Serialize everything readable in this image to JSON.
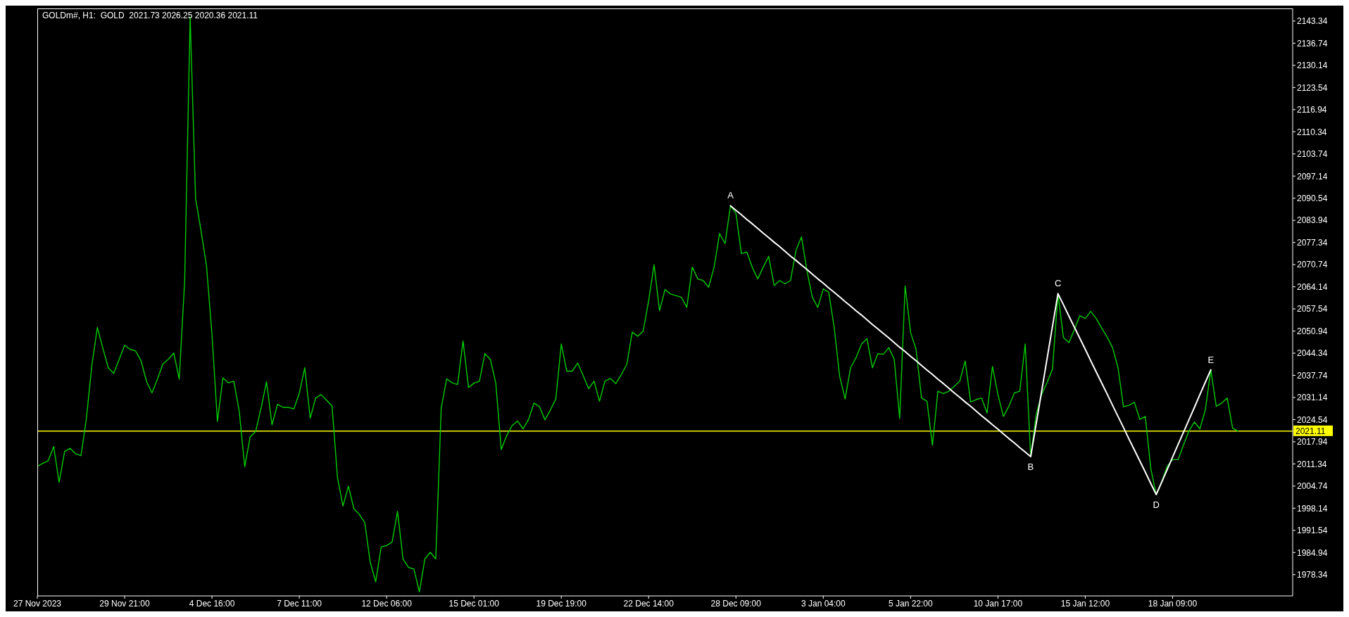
{
  "chart_data": {
    "type": "line",
    "title": "GOLDm#, H1:  GOLD  2021.73 2026.25 2020.36 2021.11",
    "categories": [
      "27 Nov 2023",
      null,
      null,
      null,
      null,
      null,
      null,
      null,
      null,
      null,
      null,
      null,
      null,
      null,
      null,
      null,
      "29 Nov 21:00",
      null,
      null,
      null,
      null,
      null,
      null,
      null,
      null,
      null,
      null,
      null,
      null,
      null,
      null,
      null,
      "4 Dec 16:00",
      null,
      null,
      null,
      null,
      null,
      null,
      null,
      null,
      null,
      null,
      null,
      null,
      null,
      null,
      null,
      "7 Dec 11:00",
      null,
      null,
      null,
      null,
      null,
      null,
      null,
      null,
      null,
      null,
      null,
      null,
      null,
      null,
      null,
      "12 Dec 06:00",
      null,
      null,
      null,
      null,
      null,
      null,
      null,
      null,
      null,
      null,
      null,
      null,
      null,
      null,
      null,
      "15 Dec 01:00",
      null,
      null,
      null,
      null,
      null,
      null,
      null,
      null,
      null,
      null,
      null,
      null,
      null,
      null,
      null,
      "19 Dec 19:00",
      null,
      null,
      null,
      null,
      null,
      null,
      null,
      null,
      null,
      null,
      null,
      null,
      null,
      null,
      null,
      "22 Dec 14:00",
      null,
      null,
      null,
      null,
      null,
      null,
      null,
      null,
      null,
      null,
      null,
      null,
      null,
      null,
      null,
      "28 Dec 09:00",
      null,
      null,
      null,
      null,
      null,
      null,
      null,
      null,
      null,
      null,
      null,
      null,
      null,
      null,
      null,
      "3 Jan 04:00",
      null,
      null,
      null,
      null,
      null,
      null,
      null,
      null,
      null,
      null,
      null,
      null,
      null,
      null,
      null,
      "5 Jan 22:00",
      null,
      null,
      null,
      null,
      null,
      null,
      null,
      null,
      null,
      null,
      null,
      null,
      null,
      null,
      null,
      "10 Jan 17:00",
      null,
      null,
      null,
      null,
      null,
      null,
      null,
      null,
      null,
      null,
      null,
      null,
      null,
      null,
      null,
      "15 Jan 12:00",
      null,
      null,
      null,
      null,
      null,
      null,
      null,
      null,
      null,
      null,
      null,
      null,
      null,
      null,
      null,
      "18 Jan 09:00",
      null,
      null,
      null,
      null,
      null,
      null,
      null,
      null,
      null,
      null,
      null,
      null,
      null,
      null,
      null,
      null,
      null,
      null,
      null,
      null,
      null,
      null
    ],
    "series": [
      {
        "color": "#00cc00",
        "values": [
          2010.6,
          2011.5,
          2012.3,
          2016.5,
          2005.9,
          2015.0,
          2016.0,
          2014.4,
          2013.8,
          2025.0,
          2040.8,
          2052.0,
          2045.9,
          2040.0,
          2038.3,
          2042.5,
          2046.7,
          2045.5,
          2045.0,
          2042.1,
          2036.0,
          2032.5,
          2036.6,
          2041.1,
          2042.5,
          2044.4,
          2036.6,
          2066.0,
          2144.6,
          2090.4,
          2080.8,
          2070.3,
          2050.0,
          2024.0,
          2037.0,
          2035.5,
          2036.0,
          2027.0,
          2010.5,
          2019.4,
          2021.0,
          2028.0,
          2035.8,
          2023.0,
          2029.1,
          2028.2,
          2028.2,
          2027.7,
          2032.4,
          2040.0,
          2025.0,
          2031.0,
          2032.0,
          2030.3,
          2028.6,
          2007.2,
          1998.8,
          2004.7,
          1998.0,
          1996.3,
          1993.8,
          1982.0,
          1976.2,
          1986.6,
          1987.0,
          1988.0,
          1997.2,
          1983.0,
          1980.5,
          1980.0,
          1973.2,
          1983.0,
          1985.0,
          1983.0,
          2028.0,
          2036.7,
          2035.5,
          2035.0,
          2048.0,
          2034.1,
          2035.4,
          2036.0,
          2044.2,
          2042.5,
          2035.4,
          2015.6,
          2019.8,
          2022.8,
          2024.1,
          2021.8,
          2024.6,
          2029.5,
          2028.4,
          2024.5,
          2027.4,
          2030.7,
          2047.1,
          2039.0,
          2039.0,
          2041.4,
          2037.7,
          2033.8,
          2036.0,
          2030.0,
          2036.0,
          2036.8,
          2035.3,
          2038.0,
          2041.0,
          2050.6,
          2049.4,
          2050.9,
          2060.0,
          2070.7,
          2057.0,
          2063.3,
          2062.0,
          2061.5,
          2061.0,
          2058.0,
          2070.0,
          2066.5,
          2066.0,
          2064.0,
          2070.0,
          2080.0,
          2077.0,
          2088.3,
          2086.0,
          2074.0,
          2074.5,
          2069.9,
          2066.5,
          2070.0,
          2073.2,
          2064.5,
          2066.0,
          2065.0,
          2066.0,
          2075.0,
          2079.0,
          2069.0,
          2061.0,
          2058.0,
          2063.5,
          2062.5,
          2052.0,
          2037.5,
          2030.7,
          2040.0,
          2043.0,
          2047.0,
          2048.7,
          2040.0,
          2044.2,
          2044.0,
          2046.0,
          2042.5,
          2024.9,
          2064.4,
          2050.5,
          2045.5,
          2031.0,
          2030.0,
          2016.9,
          2033.0,
          2032.3,
          2033.0,
          2034.5,
          2036.0,
          2042.0,
          2029.8,
          2030.5,
          2031.0,
          2026.5,
          2040.4,
          2032.0,
          2025.5,
          2028.5,
          2032.5,
          2033.0,
          2047.1,
          2013.5,
          2026.0,
          2032.0,
          2035.6,
          2039.6,
          2062.1,
          2049.0,
          2047.5,
          2051.3,
          2055.5,
          2054.7,
          2056.8,
          2054.7,
          2051.8,
          2049.2,
          2046.0,
          2040.0,
          2028.4,
          2028.8,
          2029.7,
          2024.6,
          2025.5,
          2010.0,
          2002.2,
          2006.0,
          2010.6,
          2012.6,
          2012.6,
          2017.0,
          2021.2,
          2023.8,
          2021.8,
          2027.4,
          2039.4,
          2028.5,
          2029.5,
          2031.0,
          2022.0,
          2021.1,
          null,
          null,
          null,
          null,
          null,
          null,
          null,
          null,
          null,
          null
        ]
      },
      {
        "color": "#ffffff",
        "values": [
          null,
          null,
          null,
          null,
          null,
          null,
          null,
          null,
          null,
          null,
          null,
          null,
          null,
          null,
          null,
          null,
          null,
          null,
          null,
          null,
          null,
          null,
          null,
          null,
          null,
          null,
          null,
          null,
          null,
          null,
          null,
          null,
          null,
          null,
          null,
          null,
          null,
          null,
          null,
          null,
          null,
          null,
          null,
          null,
          null,
          null,
          null,
          null,
          null,
          null,
          null,
          null,
          null,
          null,
          null,
          null,
          null,
          null,
          null,
          null,
          null,
          null,
          null,
          null,
          null,
          null,
          null,
          null,
          null,
          null,
          null,
          null,
          null,
          null,
          null,
          null,
          null,
          null,
          null,
          null,
          null,
          null,
          null,
          null,
          null,
          null,
          null,
          null,
          null,
          null,
          null,
          null,
          null,
          null,
          null,
          null,
          null,
          null,
          null,
          null,
          null,
          null,
          null,
          null,
          null,
          null,
          null,
          null,
          null,
          null,
          null,
          null,
          null,
          null,
          null,
          null,
          null,
          null,
          null,
          null,
          null,
          null,
          null,
          null,
          null,
          null,
          null,
          2088.3,
          2086.9,
          2085.6,
          2084.2,
          2082.9,
          2081.5,
          2080.1,
          2078.8,
          2077.4,
          2076.1,
          2074.7,
          2073.3,
          2072.0,
          2070.6,
          2069.3,
          2067.9,
          2066.5,
          2065.2,
          2063.8,
          2062.5,
          2061.1,
          2059.7,
          2058.4,
          2057.0,
          2055.7,
          2054.3,
          2052.9,
          2051.6,
          2050.2,
          2048.9,
          2047.5,
          2046.1,
          2044.8,
          2043.4,
          2042.1,
          2040.7,
          2039.3,
          2038.0,
          2036.6,
          2035.3,
          2033.9,
          2032.5,
          2031.2,
          2029.8,
          2028.5,
          2027.1,
          2025.7,
          2024.4,
          2023.0,
          2021.7,
          2020.3,
          2018.9,
          2017.6,
          2016.2,
          2014.9,
          2013.5,
          2023.2,
          2032.9,
          2042.7,
          2052.4,
          2062.1,
          2058.8,
          2055.4,
          2052.1,
          2048.8,
          2045.5,
          2042.1,
          2038.8,
          2035.5,
          2032.2,
          2028.8,
          2025.5,
          2022.2,
          2018.8,
          2015.5,
          2012.2,
          2008.9,
          2005.5,
          2002.2,
          2005.9,
          2009.6,
          2013.4,
          2017.1,
          2020.8,
          2024.5,
          2028.2,
          2032.0,
          2035.7,
          2039.4,
          null,
          null,
          null,
          null,
          null,
          null,
          null,
          null,
          null,
          null,
          null,
          null,
          null,
          null,
          null
        ]
      }
    ],
    "ylim": [
      1972.0,
      2147.1
    ],
    "yticks": [
      1978.34,
      1984.94,
      1991.54,
      1998.14,
      2004.74,
      2011.34,
      2017.94,
      2024.54,
      2031.14,
      2037.74,
      2044.34,
      2050.94,
      2057.54,
      2064.14,
      2070.74,
      2077.34,
      2083.94,
      2090.54,
      2097.14,
      2103.74,
      2110.34,
      2116.94,
      2123.54,
      2130.14,
      2136.74,
      2143.34
    ],
    "ref_lines": [
      {
        "axis": "y",
        "value": 2021.11,
        "label": "2021.11",
        "color": "#ffff00"
      }
    ],
    "annotations": [
      {
        "text": "A",
        "y": 2088.3
      },
      {
        "text": "B",
        "y": 2013.5
      },
      {
        "text": "C",
        "y": 2062.1
      },
      {
        "text": "D",
        "y": 2002.2
      },
      {
        "text": "E",
        "y": 2039.4
      }
    ],
    "marker": "none"
  }
}
